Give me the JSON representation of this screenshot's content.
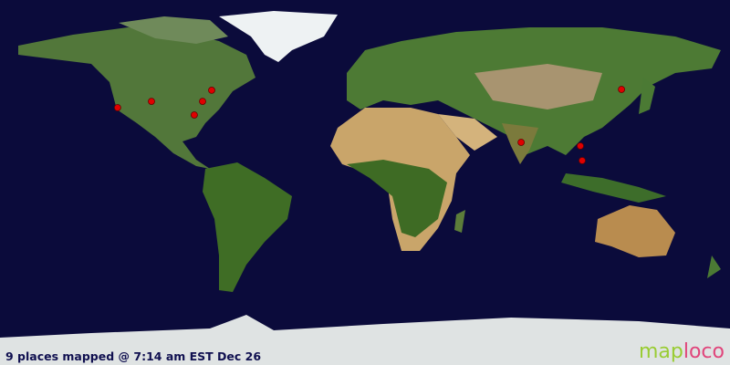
{
  "map": {
    "projection": "equirectangular",
    "colors": {
      "ocean": "#0b0b3b",
      "land": "#4f7a2e",
      "desert": "#c9a56a",
      "ice": "#e8ecee",
      "marker": "#e00000"
    },
    "markers": [
      {
        "lat": 36.9,
        "lon": -122.0
      },
      {
        "lat": 40.0,
        "lon": -105.3
      },
      {
        "lat": 40.0,
        "lon": -80.1
      },
      {
        "lat": 45.5,
        "lon": -75.6
      },
      {
        "lat": 33.3,
        "lon": -84.2
      },
      {
        "lat": 19.8,
        "lon": 77.0
      },
      {
        "lat": 18.0,
        "lon": 106.2
      },
      {
        "lat": 10.8,
        "lon": 107.1
      },
      {
        "lat": 45.9,
        "lon": 126.5
      }
    ]
  },
  "caption": "9 places mapped @ 7:14 am EST Dec 26",
  "logo": {
    "part1": "map",
    "part2": "loco"
  }
}
